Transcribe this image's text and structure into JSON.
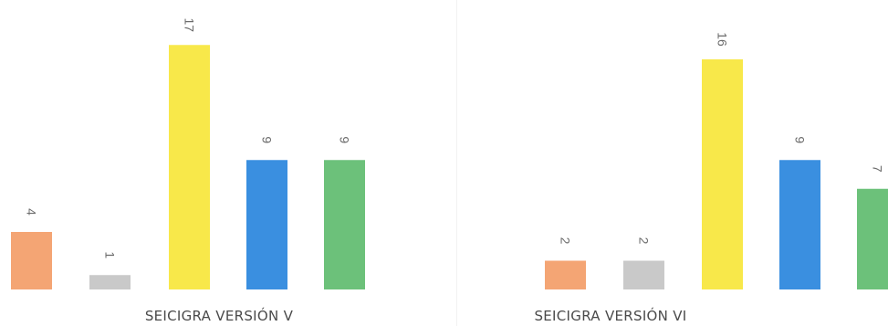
{
  "chart_data": [
    {
      "type": "bar",
      "title": "SEICIGRA VERSIÓN V",
      "values": [
        4,
        1,
        17,
        9,
        9
      ],
      "colors": [
        "#F4A574",
        "#C9C9C9",
        "#F8E84A",
        "#3A8FE0",
        "#6CC17A"
      ]
    },
    {
      "type": "bar",
      "title": "SEICIGRA VERSIÓN VI",
      "values": [
        2,
        2,
        16,
        9,
        7
      ],
      "colors": [
        "#F4A574",
        "#C9C9C9",
        "#F8E84A",
        "#3A8FE0",
        "#6CC17A"
      ]
    }
  ]
}
